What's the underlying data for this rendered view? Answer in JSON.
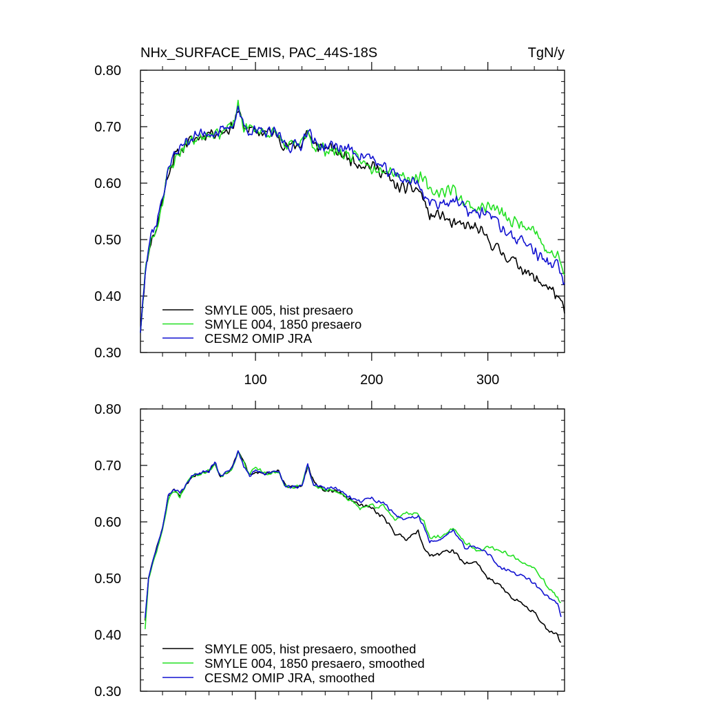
{
  "figure": {
    "title": "NHx_SURFACE_EMIS, PAC_44S-18S",
    "units": "TgN/y"
  },
  "chart_data": [
    {
      "type": "line",
      "panel": "top",
      "title": "NHx_SURFACE_EMIS, PAC_44S-18S",
      "units": "TgN/y",
      "xlim": [
        1,
        366
      ],
      "ylim": [
        0.3,
        0.8
      ],
      "x_ticks": [
        100,
        200,
        300
      ],
      "x_tick_labels": [
        "100",
        "200",
        "300"
      ],
      "y_ticks": [
        0.3,
        0.4,
        0.5,
        0.6,
        0.7,
        0.8
      ],
      "y_tick_labels": [
        "0.30",
        "0.40",
        "0.50",
        "0.60",
        "0.70",
        "0.80"
      ],
      "legend_position": "bottom-left",
      "noise": 0.013,
      "x": [
        1,
        5,
        10,
        15,
        20,
        25,
        30,
        35,
        40,
        50,
        60,
        70,
        80,
        85,
        90,
        100,
        110,
        120,
        125,
        130,
        140,
        145,
        150,
        160,
        170,
        180,
        190,
        200,
        210,
        220,
        230,
        240,
        245,
        250,
        260,
        270,
        280,
        290,
        300,
        310,
        320,
        330,
        340,
        350,
        360,
        366
      ],
      "series": [
        {
          "name": "SMYLE 005, hist presaero",
          "color": "#000000",
          "seed": 11,
          "values": [
            0.335,
            0.44,
            0.5,
            0.52,
            0.57,
            0.62,
            0.645,
            0.655,
            0.67,
            0.68,
            0.69,
            0.69,
            0.7,
            0.73,
            0.7,
            0.69,
            0.69,
            0.685,
            0.665,
            0.665,
            0.67,
            0.695,
            0.665,
            0.665,
            0.655,
            0.645,
            0.635,
            0.63,
            0.62,
            0.595,
            0.59,
            0.59,
            0.57,
            0.54,
            0.545,
            0.525,
            0.525,
            0.52,
            0.5,
            0.48,
            0.465,
            0.45,
            0.43,
            0.42,
            0.4,
            0.37
          ]
        },
        {
          "name": "SMYLE 004, 1850 presaero",
          "color": "#22e022",
          "seed": 23,
          "values": [
            0.335,
            0.44,
            0.5,
            0.52,
            0.57,
            0.62,
            0.64,
            0.655,
            0.67,
            0.68,
            0.69,
            0.69,
            0.7,
            0.735,
            0.7,
            0.695,
            0.69,
            0.685,
            0.665,
            0.665,
            0.67,
            0.695,
            0.665,
            0.66,
            0.655,
            0.65,
            0.64,
            0.625,
            0.63,
            0.62,
            0.61,
            0.61,
            0.605,
            0.585,
            0.585,
            0.59,
            0.565,
            0.555,
            0.56,
            0.55,
            0.53,
            0.53,
            0.52,
            0.48,
            0.47,
            0.44
          ]
        },
        {
          "name": "CESM2 OMIP JRA",
          "color": "#1010d0",
          "seed": 37,
          "values": [
            0.335,
            0.45,
            0.51,
            0.53,
            0.575,
            0.625,
            0.65,
            0.66,
            0.675,
            0.685,
            0.69,
            0.69,
            0.7,
            0.735,
            0.7,
            0.69,
            0.69,
            0.685,
            0.67,
            0.665,
            0.67,
            0.7,
            0.67,
            0.665,
            0.665,
            0.66,
            0.65,
            0.645,
            0.625,
            0.615,
            0.605,
            0.6,
            0.58,
            0.565,
            0.565,
            0.57,
            0.555,
            0.545,
            0.55,
            0.525,
            0.505,
            0.5,
            0.48,
            0.46,
            0.455,
            0.42
          ]
        }
      ]
    },
    {
      "type": "line",
      "panel": "bottom",
      "xlim": [
        1,
        366
      ],
      "ylim": [
        0.3,
        0.8
      ],
      "x_ticks": [
        100,
        200,
        300
      ],
      "x_tick_labels": [],
      "y_ticks": [
        0.3,
        0.4,
        0.5,
        0.6,
        0.7,
        0.8
      ],
      "y_tick_labels": [
        "0.30",
        "0.40",
        "0.50",
        "0.60",
        "0.70",
        "0.80"
      ],
      "legend_position": "bottom-left",
      "noise": 0.004,
      "x": [
        5,
        8,
        12,
        16,
        20,
        25,
        30,
        35,
        40,
        45,
        50,
        60,
        65,
        70,
        80,
        85,
        90,
        95,
        100,
        110,
        120,
        125,
        130,
        140,
        145,
        150,
        160,
        170,
        180,
        190,
        200,
        205,
        210,
        220,
        230,
        240,
        245,
        250,
        260,
        270,
        280,
        290,
        300,
        310,
        320,
        330,
        340,
        350,
        360,
        363
      ],
      "series": [
        {
          "name": "SMYLE 005, hist presaero, smoothed",
          "color": "#000000",
          "seed": 51,
          "values": [
            0.425,
            0.5,
            0.535,
            0.56,
            0.59,
            0.645,
            0.655,
            0.645,
            0.665,
            0.68,
            0.685,
            0.69,
            0.705,
            0.68,
            0.695,
            0.725,
            0.705,
            0.685,
            0.69,
            0.685,
            0.69,
            0.665,
            0.66,
            0.665,
            0.7,
            0.67,
            0.655,
            0.655,
            0.64,
            0.63,
            0.625,
            0.615,
            0.61,
            0.58,
            0.57,
            0.585,
            0.555,
            0.54,
            0.545,
            0.55,
            0.525,
            0.53,
            0.5,
            0.49,
            0.465,
            0.455,
            0.44,
            0.41,
            0.4,
            0.385
          ]
        },
        {
          "name": "SMYLE 004, 1850 presaero, smoothed",
          "color": "#22e022",
          "seed": 63,
          "values": [
            0.41,
            0.495,
            0.53,
            0.555,
            0.585,
            0.64,
            0.655,
            0.645,
            0.665,
            0.68,
            0.685,
            0.69,
            0.705,
            0.68,
            0.695,
            0.725,
            0.705,
            0.685,
            0.695,
            0.685,
            0.69,
            0.665,
            0.66,
            0.665,
            0.7,
            0.665,
            0.655,
            0.655,
            0.64,
            0.625,
            0.63,
            0.625,
            0.63,
            0.605,
            0.615,
            0.615,
            0.6,
            0.57,
            0.575,
            0.59,
            0.565,
            0.55,
            0.555,
            0.55,
            0.54,
            0.53,
            0.52,
            0.49,
            0.465,
            0.455
          ]
        },
        {
          "name": "CESM2 OMIP JRA, smoothed",
          "color": "#1010d0",
          "seed": 77,
          "values": [
            0.43,
            0.5,
            0.535,
            0.56,
            0.59,
            0.645,
            0.66,
            0.65,
            0.665,
            0.68,
            0.685,
            0.69,
            0.705,
            0.68,
            0.695,
            0.725,
            0.7,
            0.68,
            0.69,
            0.685,
            0.69,
            0.665,
            0.66,
            0.665,
            0.7,
            0.665,
            0.66,
            0.66,
            0.645,
            0.635,
            0.645,
            0.635,
            0.635,
            0.61,
            0.605,
            0.61,
            0.59,
            0.565,
            0.57,
            0.585,
            0.555,
            0.555,
            0.545,
            0.52,
            0.51,
            0.505,
            0.49,
            0.47,
            0.455,
            0.435
          ]
        }
      ]
    }
  ]
}
